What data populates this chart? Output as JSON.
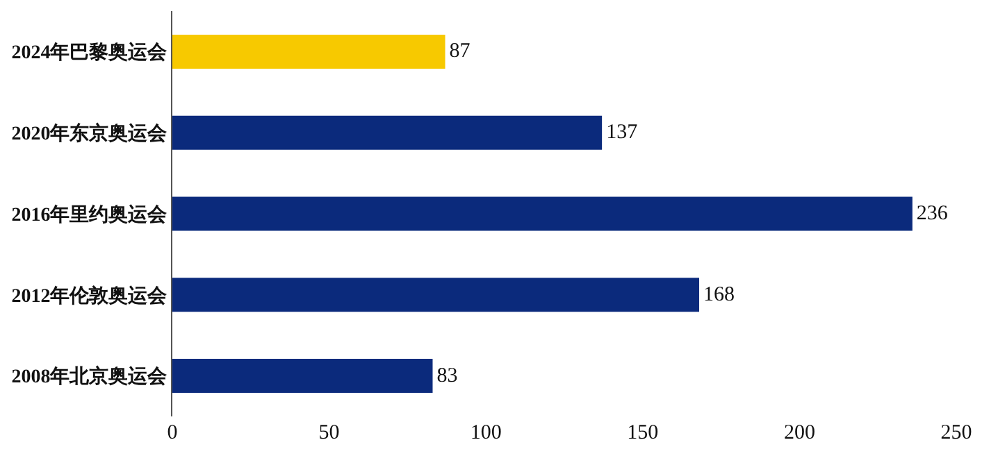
{
  "chart_data": {
    "type": "bar",
    "orientation": "horizontal",
    "categories": [
      "2024年巴黎奥运会",
      "2020年东京奥运会",
      "2016年里约奥运会",
      "2012年伦敦奥运会",
      "2008年北京奥运会"
    ],
    "values": [
      87,
      137,
      236,
      168,
      83
    ],
    "colors": [
      "#f7c900",
      "#0b2a7c",
      "#0b2a7c",
      "#0b2a7c",
      "#0b2a7c"
    ],
    "xlim": [
      0,
      250
    ],
    "xticks": [
      0,
      50,
      100,
      150,
      200,
      250
    ],
    "data_labels": true
  }
}
